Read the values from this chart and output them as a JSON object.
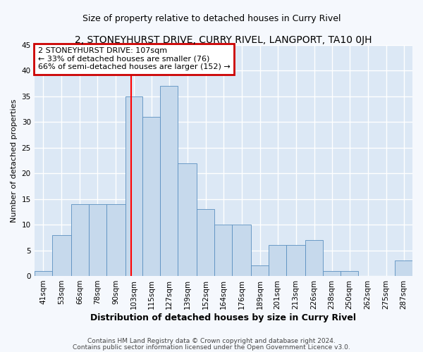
{
  "title": "2, STONEYHURST DRIVE, CURRY RIVEL, LANGPORT, TA10 0JH",
  "subtitle": "Size of property relative to detached houses in Curry Rivel",
  "xlabel": "Distribution of detached houses by size in Curry Rivel",
  "ylabel": "Number of detached properties",
  "footnote1": "Contains HM Land Registry data © Crown copyright and database right 2024.",
  "footnote2": "Contains public sector information licensed under the Open Government Licence v3.0.",
  "bin_labels": [
    "41sqm",
    "53sqm",
    "66sqm",
    "78sqm",
    "90sqm",
    "103sqm",
    "115sqm",
    "127sqm",
    "139sqm",
    "152sqm",
    "164sqm",
    "176sqm",
    "189sqm",
    "201sqm",
    "213sqm",
    "226sqm",
    "238sqm",
    "250sqm",
    "262sqm",
    "275sqm",
    "287sqm"
  ],
  "bar_values": [
    1,
    8,
    14,
    14,
    14,
    35,
    31,
    37,
    22,
    13,
    10,
    10,
    2,
    6,
    6,
    7,
    1,
    1,
    0,
    0,
    3
  ],
  "bar_color": "#c6d9ec",
  "bar_edgecolor": "#5a8fc0",
  "vline_x": 107,
  "bin_edges": [
    41,
    53,
    66,
    78,
    90,
    103,
    115,
    127,
    139,
    152,
    164,
    176,
    189,
    201,
    213,
    226,
    238,
    250,
    262,
    275,
    287,
    299
  ],
  "annotation_title": "2 STONEYHURST DRIVE: 107sqm",
  "annotation_line1": "← 33% of detached houses are smaller (76)",
  "annotation_line2": "66% of semi-detached houses are larger (152) →",
  "annotation_box_color": "#cc0000",
  "ylim": [
    0,
    45
  ],
  "yticks": [
    0,
    5,
    10,
    15,
    20,
    25,
    30,
    35,
    40,
    45
  ],
  "bg_color": "#dce8f5",
  "grid_color": "#ffffff",
  "fig_bg_color": "#f5f8fd",
  "title_fontsize": 10,
  "subtitle_fontsize": 9,
  "xlabel_fontsize": 9,
  "ylabel_fontsize": 8,
  "tick_fontsize": 7.5,
  "footnote_fontsize": 6.5
}
